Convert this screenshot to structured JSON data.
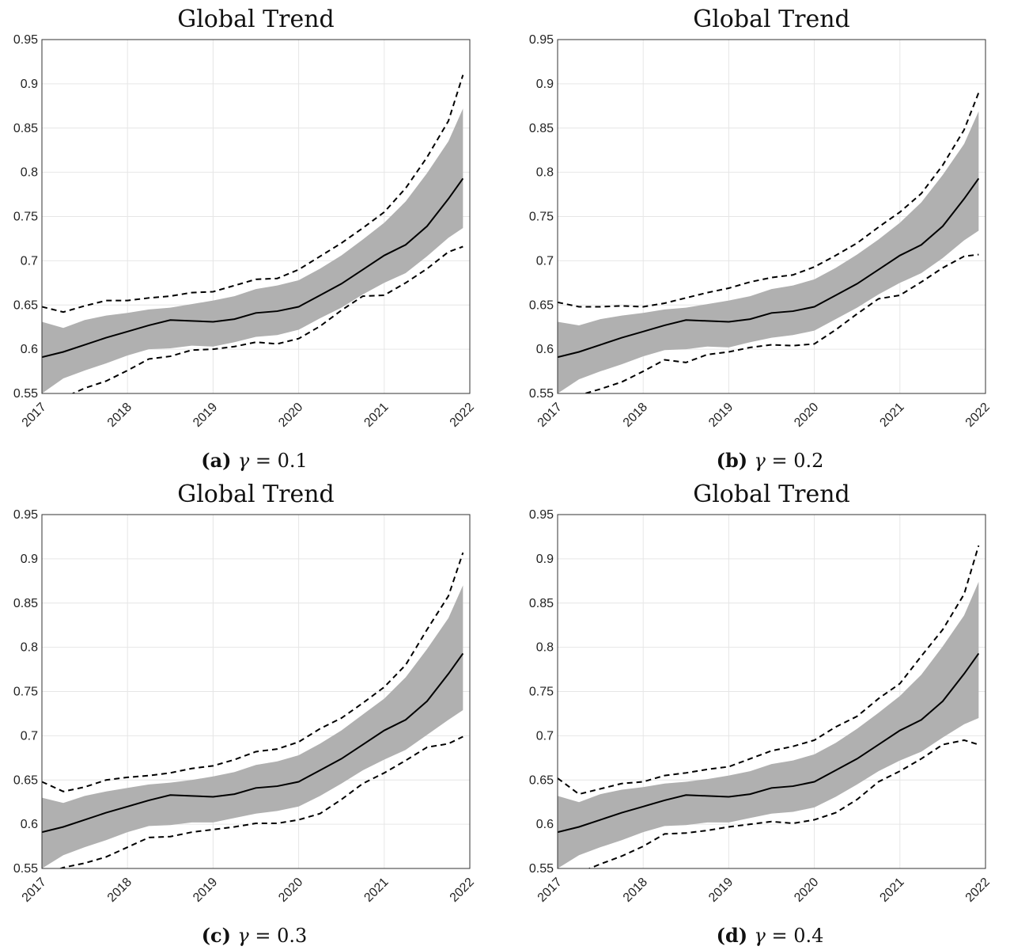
{
  "panels": [
    {
      "caption_label": "(a)",
      "caption_sym": "γ",
      "caption_eq": "= 0.1"
    },
    {
      "caption_label": "(b)",
      "caption_sym": "γ",
      "caption_eq": "= 0.2"
    },
    {
      "caption_label": "(c)",
      "caption_sym": "γ",
      "caption_eq": "= 0.3"
    },
    {
      "caption_label": "(d)",
      "caption_sym": "γ",
      "caption_eq": "= 0.4"
    }
  ],
  "colors": {
    "band": "#b0b0b0",
    "line": "#000000",
    "grid": "#e6e6e6",
    "axis": "#333333"
  },
  "chart_data": [
    {
      "type": "line",
      "title": "Global Trend",
      "xlabel": "",
      "ylabel": "",
      "xlim": [
        2017,
        2022
      ],
      "ylim": [
        0.55,
        0.95
      ],
      "xticks": [
        "2017",
        "2018",
        "2019",
        "2020",
        "2021",
        "2022"
      ],
      "yticks": [
        "0.55",
        "0.6",
        "0.65",
        "0.7",
        "0.75",
        "0.8",
        "0.85",
        "0.9",
        "0.95"
      ],
      "grid": true,
      "x": [
        2017.0,
        2017.25,
        2017.5,
        2017.75,
        2018.0,
        2018.25,
        2018.5,
        2018.75,
        2019.0,
        2019.25,
        2019.5,
        2019.75,
        2020.0,
        2020.25,
        2020.5,
        2020.75,
        2021.0,
        2021.25,
        2021.5,
        2021.75,
        2021.92
      ],
      "series": [
        {
          "role": "estimate",
          "style": "solid",
          "values": [
            0.591,
            0.597,
            0.605,
            0.613,
            0.62,
            0.627,
            0.633,
            0.632,
            0.631,
            0.634,
            0.641,
            0.643,
            0.648,
            0.661,
            0.674,
            0.69,
            0.706,
            0.718,
            0.739,
            0.77,
            0.793
          ]
        },
        {
          "role": "band_upper",
          "style": "shaded",
          "values": [
            0.631,
            0.624,
            0.633,
            0.638,
            0.641,
            0.645,
            0.647,
            0.651,
            0.655,
            0.66,
            0.668,
            0.672,
            0.678,
            0.691,
            0.706,
            0.724,
            0.743,
            0.767,
            0.799,
            0.835,
            0.872
          ]
        },
        {
          "role": "band_lower",
          "style": "shaded",
          "values": [
            0.55,
            0.567,
            0.576,
            0.584,
            0.593,
            0.6,
            0.601,
            0.604,
            0.603,
            0.608,
            0.614,
            0.616,
            0.622,
            0.635,
            0.647,
            0.662,
            0.675,
            0.686,
            0.705,
            0.726,
            0.737
          ]
        },
        {
          "role": "upper_bound",
          "style": "dashed",
          "values": [
            0.648,
            0.642,
            0.649,
            0.655,
            0.655,
            0.658,
            0.66,
            0.664,
            0.665,
            0.672,
            0.679,
            0.68,
            0.69,
            0.705,
            0.72,
            0.737,
            0.755,
            0.782,
            0.817,
            0.858,
            0.91
          ]
        },
        {
          "role": "lower_bound",
          "style": "dashed",
          "values": [
            0.542,
            0.545,
            0.556,
            0.564,
            0.576,
            0.589,
            0.592,
            0.599,
            0.6,
            0.603,
            0.608,
            0.606,
            0.612,
            0.626,
            0.644,
            0.66,
            0.661,
            0.675,
            0.691,
            0.71,
            0.716
          ]
        }
      ]
    },
    {
      "type": "line",
      "title": "Global Trend",
      "xlabel": "",
      "ylabel": "",
      "xlim": [
        2017,
        2022
      ],
      "ylim": [
        0.55,
        0.95
      ],
      "xticks": [
        "2017",
        "2018",
        "2019",
        "2020",
        "2021",
        "2022"
      ],
      "yticks": [
        "0.55",
        "0.6",
        "0.65",
        "0.7",
        "0.75",
        "0.8",
        "0.85",
        "0.9",
        "0.95"
      ],
      "grid": true,
      "x": [
        2017.0,
        2017.25,
        2017.5,
        2017.75,
        2018.0,
        2018.25,
        2018.5,
        2018.75,
        2019.0,
        2019.25,
        2019.5,
        2019.75,
        2020.0,
        2020.25,
        2020.5,
        2020.75,
        2021.0,
        2021.25,
        2021.5,
        2021.75,
        2021.92
      ],
      "series": [
        {
          "role": "estimate",
          "style": "solid",
          "values": [
            0.591,
            0.597,
            0.605,
            0.613,
            0.62,
            0.627,
            0.633,
            0.632,
            0.631,
            0.634,
            0.641,
            0.643,
            0.648,
            0.661,
            0.674,
            0.69,
            0.706,
            0.718,
            0.739,
            0.77,
            0.793
          ]
        },
        {
          "role": "band_upper",
          "style": "shaded",
          "values": [
            0.631,
            0.627,
            0.634,
            0.638,
            0.641,
            0.645,
            0.647,
            0.651,
            0.655,
            0.66,
            0.668,
            0.672,
            0.679,
            0.692,
            0.707,
            0.724,
            0.743,
            0.766,
            0.797,
            0.832,
            0.869
          ]
        },
        {
          "role": "band_lower",
          "style": "shaded",
          "values": [
            0.55,
            0.566,
            0.575,
            0.583,
            0.592,
            0.599,
            0.6,
            0.603,
            0.602,
            0.608,
            0.613,
            0.616,
            0.621,
            0.634,
            0.647,
            0.662,
            0.675,
            0.686,
            0.703,
            0.723,
            0.734
          ]
        },
        {
          "role": "upper_bound",
          "style": "dashed",
          "values": [
            0.653,
            0.648,
            0.648,
            0.649,
            0.648,
            0.652,
            0.658,
            0.664,
            0.669,
            0.676,
            0.681,
            0.684,
            0.693,
            0.706,
            0.72,
            0.738,
            0.755,
            0.776,
            0.808,
            0.848,
            0.89
          ]
        },
        {
          "role": "lower_bound",
          "style": "dashed",
          "values": [
            0.545,
            0.548,
            0.555,
            0.563,
            0.575,
            0.588,
            0.585,
            0.594,
            0.597,
            0.602,
            0.605,
            0.604,
            0.606,
            0.622,
            0.64,
            0.657,
            0.661,
            0.676,
            0.692,
            0.705,
            0.707
          ]
        }
      ]
    },
    {
      "type": "line",
      "title": "Global Trend",
      "xlabel": "",
      "ylabel": "",
      "xlim": [
        2017,
        2022
      ],
      "ylim": [
        0.55,
        0.95
      ],
      "xticks": [
        "2017",
        "2018",
        "2019",
        "2020",
        "2021",
        "2022"
      ],
      "yticks": [
        "0.55",
        "0.6",
        "0.65",
        "0.7",
        "0.75",
        "0.8",
        "0.85",
        "0.9",
        "0.95"
      ],
      "grid": true,
      "x": [
        2017.0,
        2017.25,
        2017.5,
        2017.75,
        2018.0,
        2018.25,
        2018.5,
        2018.75,
        2019.0,
        2019.25,
        2019.5,
        2019.75,
        2020.0,
        2020.25,
        2020.5,
        2020.75,
        2021.0,
        2021.25,
        2021.5,
        2021.75,
        2021.92
      ],
      "series": [
        {
          "role": "estimate",
          "style": "solid",
          "values": [
            0.591,
            0.597,
            0.605,
            0.613,
            0.62,
            0.627,
            0.633,
            0.632,
            0.631,
            0.634,
            0.641,
            0.643,
            0.648,
            0.661,
            0.674,
            0.69,
            0.706,
            0.718,
            0.739,
            0.77,
            0.793
          ]
        },
        {
          "role": "band_upper",
          "style": "shaded",
          "values": [
            0.63,
            0.624,
            0.632,
            0.637,
            0.641,
            0.645,
            0.647,
            0.65,
            0.654,
            0.659,
            0.667,
            0.671,
            0.678,
            0.691,
            0.706,
            0.724,
            0.742,
            0.766,
            0.798,
            0.833,
            0.87
          ]
        },
        {
          "role": "band_lower",
          "style": "shaded",
          "values": [
            0.55,
            0.565,
            0.574,
            0.582,
            0.591,
            0.598,
            0.599,
            0.602,
            0.602,
            0.607,
            0.612,
            0.615,
            0.62,
            0.632,
            0.646,
            0.661,
            0.673,
            0.684,
            0.701,
            0.718,
            0.729
          ]
        },
        {
          "role": "upper_bound",
          "style": "dashed",
          "values": [
            0.648,
            0.637,
            0.642,
            0.65,
            0.653,
            0.655,
            0.658,
            0.663,
            0.666,
            0.673,
            0.682,
            0.685,
            0.693,
            0.708,
            0.72,
            0.737,
            0.755,
            0.78,
            0.82,
            0.858,
            0.907
          ]
        },
        {
          "role": "lower_bound",
          "style": "dashed",
          "values": [
            0.542,
            0.551,
            0.556,
            0.563,
            0.574,
            0.585,
            0.586,
            0.591,
            0.594,
            0.597,
            0.601,
            0.601,
            0.605,
            0.612,
            0.628,
            0.646,
            0.658,
            0.672,
            0.687,
            0.691,
            0.699
          ]
        }
      ]
    },
    {
      "type": "line",
      "title": "Global Trend",
      "xlabel": "",
      "ylabel": "",
      "xlim": [
        2017,
        2022
      ],
      "ylim": [
        0.55,
        0.95
      ],
      "xticks": [
        "2017",
        "2018",
        "2019",
        "2020",
        "2021",
        "2022"
      ],
      "yticks": [
        "0.55",
        "0.6",
        "0.65",
        "0.7",
        "0.75",
        "0.8",
        "0.85",
        "0.9",
        "0.95"
      ],
      "grid": true,
      "x": [
        2017.0,
        2017.25,
        2017.5,
        2017.75,
        2018.0,
        2018.25,
        2018.5,
        2018.75,
        2019.0,
        2019.25,
        2019.5,
        2019.75,
        2020.0,
        2020.25,
        2020.5,
        2020.75,
        2021.0,
        2021.25,
        2021.5,
        2021.75,
        2021.92
      ],
      "series": [
        {
          "role": "estimate",
          "style": "solid",
          "values": [
            0.591,
            0.597,
            0.605,
            0.613,
            0.62,
            0.627,
            0.633,
            0.632,
            0.631,
            0.634,
            0.641,
            0.643,
            0.648,
            0.661,
            0.674,
            0.69,
            0.706,
            0.718,
            0.739,
            0.77,
            0.793
          ]
        },
        {
          "role": "band_upper",
          "style": "shaded",
          "values": [
            0.632,
            0.625,
            0.634,
            0.639,
            0.642,
            0.646,
            0.648,
            0.651,
            0.655,
            0.66,
            0.668,
            0.672,
            0.679,
            0.692,
            0.708,
            0.726,
            0.745,
            0.769,
            0.801,
            0.836,
            0.874
          ]
        },
        {
          "role": "band_lower",
          "style": "shaded",
          "values": [
            0.55,
            0.565,
            0.574,
            0.582,
            0.591,
            0.598,
            0.599,
            0.602,
            0.602,
            0.607,
            0.612,
            0.614,
            0.619,
            0.631,
            0.645,
            0.66,
            0.672,
            0.682,
            0.698,
            0.713,
            0.72
          ]
        },
        {
          "role": "upper_bound",
          "style": "dashed",
          "values": [
            0.652,
            0.634,
            0.64,
            0.646,
            0.648,
            0.655,
            0.658,
            0.662,
            0.665,
            0.674,
            0.683,
            0.688,
            0.695,
            0.71,
            0.722,
            0.742,
            0.759,
            0.79,
            0.82,
            0.86,
            0.915
          ]
        },
        {
          "role": "lower_bound",
          "style": "dashed",
          "values": [
            0.54,
            0.545,
            0.555,
            0.564,
            0.575,
            0.589,
            0.59,
            0.593,
            0.597,
            0.6,
            0.603,
            0.601,
            0.605,
            0.613,
            0.628,
            0.648,
            0.66,
            0.674,
            0.69,
            0.695,
            0.69
          ]
        }
      ]
    }
  ]
}
